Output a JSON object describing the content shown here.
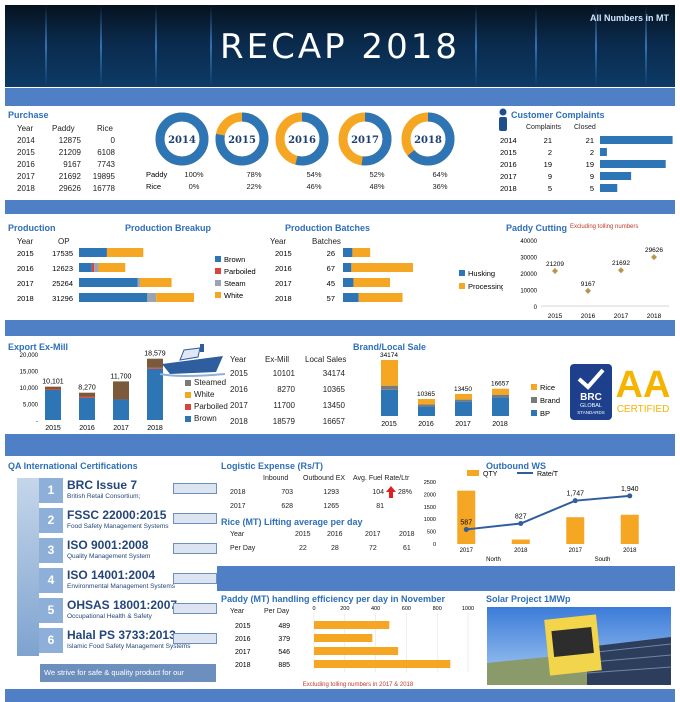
{
  "header": {
    "title": "RECAP 2018",
    "note": "All Numbers in MT"
  },
  "purchase": {
    "title": "Purchase",
    "cols": [
      "Year",
      "Paddy",
      "Rice"
    ],
    "rows": [
      [
        "2014",
        "12875",
        "0"
      ],
      [
        "2015",
        "21209",
        "6108"
      ],
      [
        "2016",
        "9167",
        "7743"
      ],
      [
        "2017",
        "21692",
        "19895"
      ],
      [
        "2018",
        "29626",
        "16778"
      ]
    ],
    "donut_labels": [
      "2014",
      "2015",
      "2016",
      "2017",
      "2018"
    ],
    "legend": [
      "Paddy",
      "Rice"
    ],
    "paddy_pct": [
      "100%",
      "78%",
      "54%",
      "52%",
      "64%"
    ],
    "rice_pct": [
      "0%",
      "22%",
      "46%",
      "48%",
      "36%"
    ],
    "paddy_share": [
      1.0,
      0.78,
      0.54,
      0.52,
      0.64
    ]
  },
  "complaints": {
    "title": "Customer Complaints",
    "cols": [
      "Complaints",
      "Closed"
    ],
    "rows": [
      [
        "2014",
        "21",
        "21"
      ],
      [
        "2015",
        "2",
        "2"
      ],
      [
        "2016",
        "19",
        "19"
      ],
      [
        "2017",
        "9",
        "9"
      ],
      [
        "2018",
        "5",
        "5"
      ]
    ],
    "values": [
      21,
      2,
      19,
      9,
      5
    ]
  },
  "production": {
    "title": "Production",
    "cols": [
      "Year",
      "OP"
    ],
    "rows": [
      [
        "2015",
        "17535"
      ],
      [
        "2016",
        "12623"
      ],
      [
        "2017",
        "25264"
      ],
      [
        "2018",
        "31296"
      ]
    ],
    "breakup_title": "Production Breakup",
    "breakup_legend": [
      "Brown",
      "Parboiled",
      "Steam",
      "White"
    ],
    "breakup": [
      [
        7600,
        0,
        0,
        9900
      ],
      [
        3500,
        600,
        1200,
        7300
      ],
      [
        16000,
        0,
        600,
        8600
      ],
      [
        18600,
        0,
        2400,
        10300
      ]
    ]
  },
  "batches": {
    "title": "Production Batches",
    "cols": [
      "Year",
      "Batches"
    ],
    "rows": [
      [
        "2015",
        "26"
      ],
      [
        "2016",
        "67"
      ],
      [
        "2017",
        "45"
      ],
      [
        "2018",
        "57"
      ]
    ],
    "legend": [
      "Husking",
      "Processing"
    ],
    "split": [
      [
        9,
        17
      ],
      [
        8,
        59
      ],
      [
        10,
        35
      ],
      [
        15,
        42
      ]
    ]
  },
  "cutting": {
    "title": "Paddy Cutting",
    "note": "Excluding tolling numbers",
    "x": [
      "2015",
      "2016",
      "2017",
      "2018"
    ],
    "values": [
      21209,
      9167,
      21692,
      29626
    ],
    "labels": [
      "21209",
      "9167",
      "21692",
      "29626"
    ],
    "yticks": [
      "40000",
      "30000",
      "20000",
      "10000",
      "0"
    ],
    "ylim": [
      0,
      40000
    ]
  },
  "export": {
    "title": "Export Ex-Mill",
    "x": [
      "2015",
      "2016",
      "2017",
      "2018"
    ],
    "labels": [
      "10,101",
      "8,270",
      "11,700",
      "18,579"
    ],
    "yticks": [
      "20,000",
      "15,000",
      "10,000",
      "5,000",
      "-"
    ],
    "ylim": [
      0,
      20000
    ],
    "segments": [
      [
        9100,
        0,
        300,
        700
      ],
      [
        6700,
        0,
        400,
        1170
      ],
      [
        6200,
        0,
        0,
        5500
      ],
      [
        15500,
        0,
        300,
        2779
      ]
    ],
    "legend": [
      "Steamed",
      "White",
      "Parboiled",
      "Brown"
    ],
    "cols": [
      "Year",
      "Ex-Mill",
      "Local Sales"
    ],
    "rows": [
      [
        "2015",
        "10101",
        "34174"
      ],
      [
        "2016",
        "8270",
        "10365"
      ],
      [
        "2017",
        "11700",
        "13450"
      ],
      [
        "2018",
        "18579",
        "16657"
      ]
    ]
  },
  "brand": {
    "title": "Brand/Local Sale",
    "x": [
      "2015",
      "2016",
      "2017",
      "2018"
    ],
    "labels": [
      "34174",
      "10365",
      "13450",
      "16657"
    ],
    "segments": [
      [
        16000,
        2500,
        15674
      ],
      [
        6000,
        1000,
        3365
      ],
      [
        9000,
        1000,
        3450
      ],
      [
        11500,
        1500,
        3657
      ]
    ],
    "legend": [
      "Rice",
      "Brand",
      "BP"
    ],
    "brc_lines": [
      "BRC",
      "GLOBAL",
      "STANDARDS"
    ],
    "aa_lines": [
      "AA",
      "CERTIFIED"
    ]
  },
  "qa": {
    "title": "QA International Certifications",
    "items": [
      {
        "num": "1",
        "name": "BRC Issue 7",
        "sub": "British Retail Consortium;"
      },
      {
        "num": "2",
        "name": "FSSC 22000:2015",
        "sub": "Food Safety Management Systems"
      },
      {
        "num": "3",
        "name": "ISO 9001:2008",
        "sub": "Quality Management System"
      },
      {
        "num": "4",
        "name": "ISO 14001:2004",
        "sub": "Environmental Management Systems"
      },
      {
        "num": "5",
        "name": "OHSAS 18001:2007",
        "sub": "Occupational Health & Safety"
      },
      {
        "num": "6",
        "name": "Halal PS 3733:2013",
        "sub": "Islamic Food Safety Management Systems"
      }
    ],
    "footer": "We strive for safe & quality product for our customer."
  },
  "logistics": {
    "title": "Logistic Expense (Rs/T)",
    "cols": [
      "Inbound",
      "Outbound EX",
      "Avg. Fuel Rate/Ltr"
    ],
    "rows": [
      [
        "2018",
        "703",
        "1293",
        "104",
        "28%"
      ],
      [
        "2017",
        "628",
        "1265",
        "81",
        ""
      ]
    ],
    "lifting_title": "Rice (MT) Lifting average per day",
    "lifting_cols": [
      "Year",
      "2015",
      "2016",
      "2017",
      "2018"
    ],
    "lifting_row": [
      "Per Day",
      "22",
      "28",
      "72",
      "61"
    ]
  },
  "outbound": {
    "title": "Outbound WS",
    "legend": [
      "QTY",
      "Rate/T"
    ],
    "yticks": [
      "2500",
      "2000",
      "1500",
      "1000",
      "500",
      "0"
    ],
    "x": [
      "2017",
      "2018",
      "2017",
      "2018"
    ],
    "groups": [
      "North",
      "South"
    ],
    "qty": [
      2150,
      180,
      1080,
      1180
    ],
    "rate": [
      587,
      827,
      1747,
      1940
    ],
    "rate_labels": [
      "587",
      "827",
      "1,747",
      "1,940"
    ],
    "ylim": [
      0,
      2500
    ]
  },
  "handling": {
    "title": "Paddy (MT) handling efficiency per day in November",
    "cols": [
      "Year",
      "Per Day"
    ],
    "rows": [
      [
        "2015",
        "489"
      ],
      [
        "2016",
        "379"
      ],
      [
        "2017",
        "546"
      ],
      [
        "2018",
        "885"
      ]
    ],
    "xticks": [
      "0",
      "200",
      "400",
      "600",
      "800",
      "1000"
    ],
    "xlim": [
      0,
      1000
    ],
    "values": [
      489,
      379,
      546,
      885
    ],
    "note": "Excluding tolling numbers in 2017 & 2018"
  },
  "solar": {
    "title": "Solar Project 1MWp"
  }
}
